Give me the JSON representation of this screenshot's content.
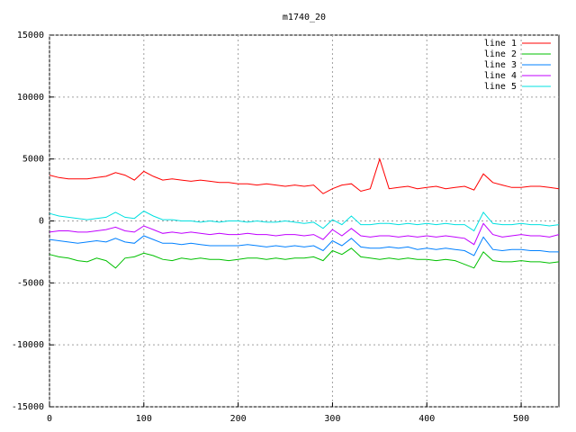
{
  "chart_data": {
    "type": "line",
    "title": "m1740_20",
    "x": [
      0,
      10,
      20,
      30,
      40,
      50,
      60,
      70,
      80,
      90,
      100,
      110,
      120,
      130,
      140,
      150,
      160,
      170,
      180,
      190,
      200,
      210,
      220,
      230,
      240,
      250,
      260,
      270,
      280,
      290,
      300,
      310,
      320,
      330,
      340,
      350,
      360,
      370,
      380,
      390,
      400,
      410,
      420,
      430,
      440,
      450,
      460,
      470,
      480,
      490,
      500,
      510,
      520,
      530,
      540
    ],
    "xlim": [
      0,
      540
    ],
    "xticks": [
      0,
      100,
      200,
      300,
      400,
      500
    ],
    "ylim": [
      -15000,
      15000
    ],
    "yticks": [
      -15000,
      -10000,
      -5000,
      0,
      5000,
      10000,
      15000
    ],
    "grid": true,
    "legend": "top-right",
    "series": [
      {
        "name": "line 1",
        "color": "#ff0000",
        "values": [
          3700,
          3500,
          3400,
          3400,
          3400,
          3500,
          3600,
          3900,
          3700,
          3300,
          4000,
          3600,
          3300,
          3400,
          3300,
          3200,
          3300,
          3200,
          3100,
          3100,
          3000,
          3000,
          2900,
          3000,
          2900,
          2800,
          2900,
          2800,
          2900,
          2200,
          2600,
          2900,
          3000,
          2400,
          2600,
          5000,
          2600,
          2700,
          2800,
          2600,
          2700,
          2800,
          2600,
          2700,
          2800,
          2500,
          3800,
          3100,
          2900,
          2700,
          2700,
          2800,
          2800,
          2700,
          2600
        ]
      },
      {
        "name": "line 2",
        "color": "#00c000",
        "values": [
          -2700,
          -2900,
          -3000,
          -3200,
          -3300,
          -3000,
          -3200,
          -3800,
          -3000,
          -2900,
          -2600,
          -2800,
          -3100,
          -3200,
          -3000,
          -3100,
          -3000,
          -3100,
          -3100,
          -3200,
          -3100,
          -3000,
          -3000,
          -3100,
          -3000,
          -3100,
          -3000,
          -3000,
          -2900,
          -3200,
          -2400,
          -2700,
          -2200,
          -2900,
          -3000,
          -3100,
          -3000,
          -3100,
          -3000,
          -3100,
          -3100,
          -3200,
          -3100,
          -3200,
          -3500,
          -3800,
          -2500,
          -3200,
          -3300,
          -3300,
          -3200,
          -3300,
          -3300,
          -3400,
          -3300
        ]
      },
      {
        "name": "line 3",
        "color": "#0080ff",
        "values": [
          -1500,
          -1600,
          -1700,
          -1800,
          -1700,
          -1600,
          -1700,
          -1400,
          -1700,
          -1800,
          -1200,
          -1500,
          -1800,
          -1800,
          -1900,
          -1800,
          -1900,
          -2000,
          -2000,
          -2000,
          -2000,
          -1900,
          -2000,
          -2100,
          -2000,
          -2100,
          -2000,
          -2100,
          -2000,
          -2400,
          -1600,
          -2000,
          -1400,
          -2100,
          -2200,
          -2200,
          -2100,
          -2200,
          -2100,
          -2300,
          -2200,
          -2300,
          -2200,
          -2300,
          -2400,
          -2800,
          -1300,
          -2300,
          -2400,
          -2300,
          -2300,
          -2400,
          -2400,
          -2500,
          -2500
        ]
      },
      {
        "name": "line 4",
        "color": "#c000ff",
        "values": [
          -900,
          -800,
          -800,
          -900,
          -900,
          -800,
          -700,
          -500,
          -800,
          -900,
          -400,
          -700,
          -1000,
          -900,
          -1000,
          -900,
          -1000,
          -1100,
          -1000,
          -1100,
          -1100,
          -1000,
          -1100,
          -1100,
          -1200,
          -1100,
          -1100,
          -1200,
          -1100,
          -1500,
          -700,
          -1200,
          -600,
          -1200,
          -1300,
          -1200,
          -1200,
          -1300,
          -1200,
          -1300,
          -1200,
          -1300,
          -1200,
          -1300,
          -1400,
          -1900,
          -200,
          -1100,
          -1300,
          -1200,
          -1100,
          -1200,
          -1200,
          -1300,
          -1100
        ]
      },
      {
        "name": "line 5",
        "color": "#00e0e0",
        "values": [
          600,
          400,
          300,
          200,
          100,
          200,
          300,
          700,
          300,
          200,
          800,
          400,
          100,
          100,
          0,
          0,
          -100,
          0,
          -100,
          0,
          0,
          -100,
          0,
          -100,
          -100,
          0,
          -100,
          -200,
          -100,
          -600,
          100,
          -300,
          400,
          -300,
          -300,
          -200,
          -200,
          -300,
          -200,
          -300,
          -200,
          -300,
          -200,
          -300,
          -300,
          -800,
          700,
          -200,
          -300,
          -300,
          -200,
          -300,
          -300,
          -400,
          -300
        ]
      }
    ]
  }
}
